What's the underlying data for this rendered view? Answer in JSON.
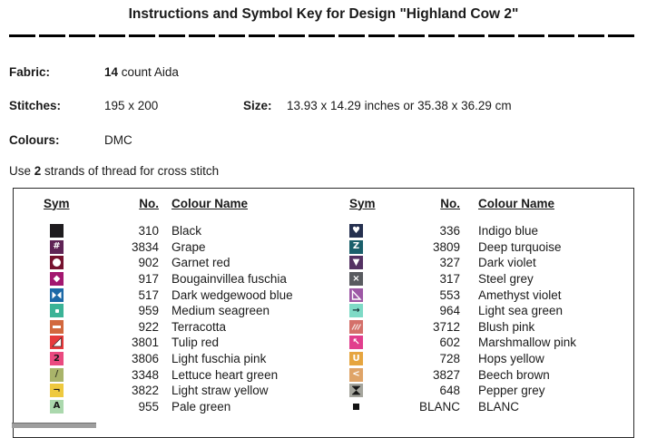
{
  "title": "Instructions and Symbol Key for Design \"Highland Cow 2\"",
  "info": {
    "fabric_label": "Fabric:",
    "fabric_bold": "14",
    "fabric_rest": " count Aida",
    "stitches_label": "Stitches:",
    "stitches_value": "195 x 200",
    "size_label": "Size:",
    "size_value": "13.93 x 14.29 inches or 35.38 x 36.29 cm",
    "colours_label": "Colours:",
    "colours_value": "DMC",
    "strands_prefix": "Use ",
    "strands_bold": "2",
    "strands_suffix": " strands of thread for cross stitch"
  },
  "key_table": {
    "headers": [
      "Sym",
      "No.",
      "Colour Name"
    ],
    "left_rows": [
      {
        "no": "310",
        "name": "Black",
        "sym": {
          "shape": "solid",
          "bg": "#1e1c1f",
          "fg": "#ffffff",
          "text": ""
        }
      },
      {
        "no": "3834",
        "name": "Grape",
        "sym": {
          "shape": "text",
          "bg": "#5f2355",
          "fg": "#ffffff",
          "text": "#"
        }
      },
      {
        "no": "902",
        "name": "Garnet red",
        "sym": {
          "shape": "circle",
          "bg": "#76122f",
          "fg": "#ffffff",
          "text": ""
        }
      },
      {
        "no": "917",
        "name": "Bougainvillea fuschia",
        "sym": {
          "shape": "text",
          "bg": "#a31770",
          "fg": "#ffffff",
          "text": "◆"
        }
      },
      {
        "no": "517",
        "name": "Dark wedgewood blue",
        "sym": {
          "shape": "bowtie",
          "bg": "#1c69a7",
          "fg": "#ffffff",
          "text": ""
        }
      },
      {
        "no": "959",
        "name": "Medium seagreen",
        "sym": {
          "shape": "dot",
          "bg": "#3bb397",
          "fg": "#ffffff",
          "text": ""
        }
      },
      {
        "no": "922",
        "name": "Terracotta",
        "sym": {
          "shape": "dash",
          "bg": "#d2683e",
          "fg": "#ffffff",
          "text": ""
        }
      },
      {
        "no": "3801",
        "name": "Tulip red",
        "sym": {
          "shape": "tri-br",
          "bg": "#e63a3c",
          "fg": "#ffffff",
          "text": ""
        }
      },
      {
        "no": "3806",
        "name": "Light fuschia pink",
        "sym": {
          "shape": "text",
          "bg": "#ea4a80",
          "fg": "#1a1a1a",
          "text": "2"
        }
      },
      {
        "no": "3348",
        "name": "Lettuce heart green",
        "sym": {
          "shape": "text",
          "bg": "#a9b46a",
          "fg": "#3d4028",
          "text": "/"
        }
      },
      {
        "no": "3822",
        "name": "Light straw yellow",
        "sym": {
          "shape": "text",
          "bg": "#eec93f",
          "fg": "#1a1a1a",
          "text": "¬"
        }
      },
      {
        "no": "955",
        "name": "Pale green",
        "sym": {
          "shape": "text",
          "bg": "#abd8ad",
          "fg": "#1a1a1a",
          "text": "A"
        }
      }
    ],
    "right_rows": [
      {
        "no": "336",
        "name": "Indigo blue",
        "sym": {
          "shape": "text",
          "bg": "#25304f",
          "fg": "#ffffff",
          "text": "♥"
        }
      },
      {
        "no": "3809",
        "name": "Deep turquoise",
        "sym": {
          "shape": "text",
          "bg": "#1a5f6b",
          "fg": "#ffffff",
          "text": "Z"
        }
      },
      {
        "no": "327",
        "name": "Dark violet",
        "sym": {
          "shape": "text",
          "bg": "#543263",
          "fg": "#ffffff",
          "text": "▼"
        }
      },
      {
        "no": "317",
        "name": "Steel grey",
        "sym": {
          "shape": "text",
          "bg": "#595b60",
          "fg": "#ffffff",
          "text": "×"
        }
      },
      {
        "no": "553",
        "name": "Amethyst violet",
        "sym": {
          "shape": "tri-outline-bl",
          "bg": "#9d58a5",
          "fg": "#ffffff",
          "text": ""
        }
      },
      {
        "no": "964",
        "name": "Light sea green",
        "sym": {
          "shape": "text",
          "bg": "#7edac6",
          "fg": "#15383a",
          "text": "→"
        }
      },
      {
        "no": "3712",
        "name": "Blush pink",
        "sym": {
          "shape": "triple-slash",
          "bg": "#d4706a",
          "fg": "#f3dcd8",
          "text": ""
        }
      },
      {
        "no": "602",
        "name": "Marshmallow pink",
        "sym": {
          "shape": "text",
          "bg": "#e13e8d",
          "fg": "#ffffff",
          "text": "↖"
        }
      },
      {
        "no": "728",
        "name": "Hops yellow",
        "sym": {
          "shape": "text",
          "bg": "#e6a53f",
          "fg": "#ffffff",
          "text": "U"
        }
      },
      {
        "no": "3827",
        "name": "Beech brown",
        "sym": {
          "shape": "text",
          "bg": "#dfa468",
          "fg": "#ffffff",
          "text": "<"
        }
      },
      {
        "no": "648",
        "name": "Pepper grey",
        "sym": {
          "shape": "hourglass",
          "bg": "#a5a59d",
          "fg": "#141414",
          "text": ""
        }
      },
      {
        "no": "BLANC",
        "name": "BLANC",
        "sym": {
          "shape": "small-square",
          "bg": "transparent",
          "fg": "#141414",
          "text": ""
        }
      }
    ]
  }
}
